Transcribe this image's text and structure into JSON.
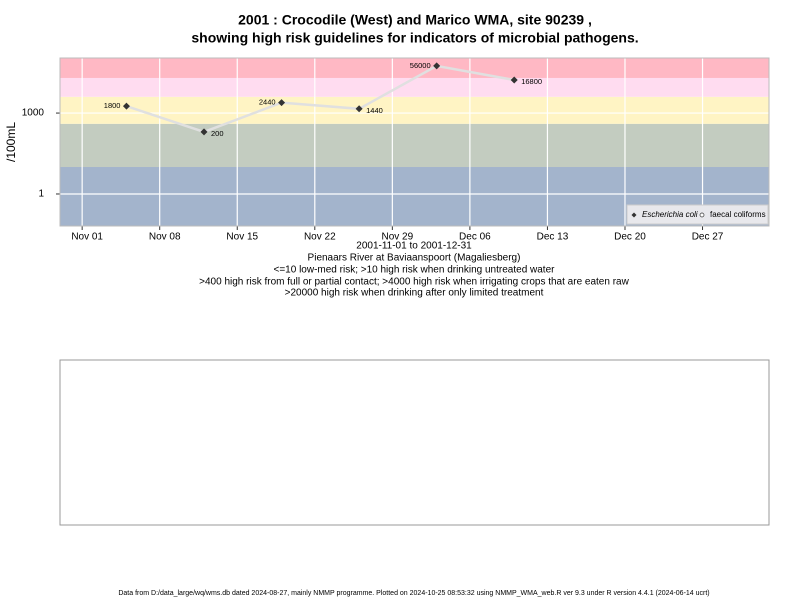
{
  "chart_data": {
    "type": "line",
    "title": [
      "2001 : Crocodile (West) and Marico WMA, site 90239 ,",
      "showing high risk guidelines for indicators of microbial pathogens."
    ],
    "y_label": "/100mL",
    "x_label": "2001-11-01 to 2001-12-31",
    "notes": [
      "Pienaars River at Baviaanspoort (Magaliesberg)",
      "<=10 low-med risk; >10 high risk when drinking untreated water",
      ">400 high risk from full or partial contact; >4000 high risk when irrigating crops that are eaten raw",
      ">20000 high risk when drinking after only limited treatment"
    ],
    "x": [
      "2001-11-05",
      "2001-11-12",
      "2001-11-19",
      "2001-11-26",
      "2001-12-03",
      "2001-12-10"
    ],
    "series": [
      {
        "name": "Escherichia coli",
        "color": "#333333",
        "values": [
          1800,
          200,
          2440,
          1440,
          56000,
          16800
        ]
      },
      {
        "name": "faecal coliforms",
        "color": "#ffffff",
        "values": [
          null,
          null,
          null,
          null,
          null,
          null
        ]
      }
    ],
    "xlim": [
      "2001-10-30",
      "2002-01-02"
    ],
    "xticks": [
      {
        "value": "2001-11-01",
        "label": "Nov 01"
      },
      {
        "value": "2001-11-08",
        "label": "Nov 08"
      },
      {
        "value": "2001-11-15",
        "label": "Nov 15"
      },
      {
        "value": "2001-11-22",
        "label": "Nov 22"
      },
      {
        "value": "2001-11-29",
        "label": "Nov 29"
      },
      {
        "value": "2001-12-06",
        "label": "Dec 06"
      },
      {
        "value": "2001-12-13",
        "label": "Dec 13"
      },
      {
        "value": "2001-12-20",
        "label": "Dec 20"
      },
      {
        "value": "2001-12-27",
        "label": "Dec 27"
      }
    ],
    "ylim": [
      0.065,
      110000
    ],
    "yticks": [
      1,
      1000
    ],
    "log_scale_y": true,
    "grid": true,
    "legend_position": "bottom-right",
    "thresholds": [
      10,
      400,
      4000,
      20000
    ],
    "band_colors": [
      "#a3b4cc",
      "#c3ccc0",
      "#fff4c4",
      "#ffdcf0",
      "#ffb8c4"
    ],
    "line_color": "#e0e0e0",
    "footer": "Data from D:/data_large/wq/wms.db dated 2024-08-27, mainly NMMP programme. Plotted on 2024-10-25 08:53:32 using NMMP_WMA_web.R ver 9.3 under R version 4.4.1 (2024-06-14 ucrt)"
  }
}
